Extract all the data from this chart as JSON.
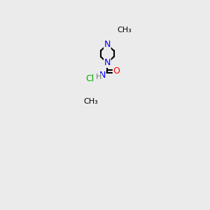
{
  "background_color": "#ebebeb",
  "atom_colors": {
    "N": "#0000FF",
    "O": "#FF0000",
    "Cl": "#00AA00",
    "C": "#000000",
    "H": "#777777"
  },
  "bond_color": "#000000",
  "bond_width": 1.5,
  "font_size_atoms": 9,
  "font_size_small": 8
}
